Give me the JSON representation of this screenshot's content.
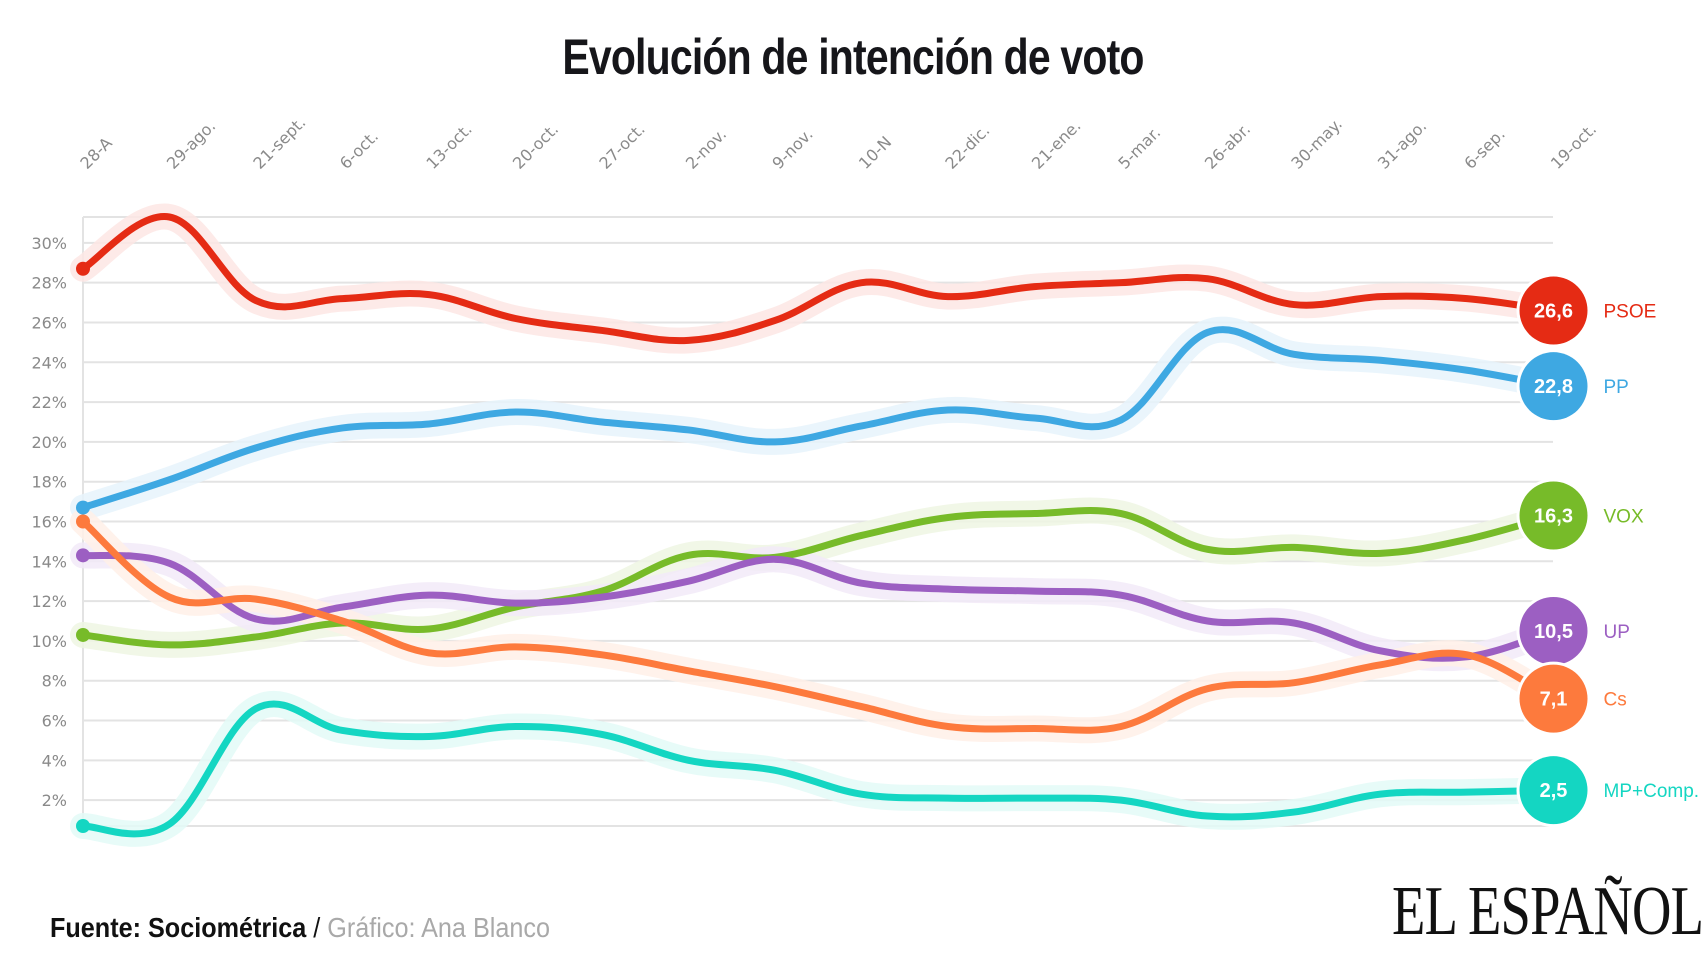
{
  "title": "Evolución de intención de voto",
  "footer": {
    "source": "Fuente: Sociométrica",
    "separator": " / ",
    "credit": "Gráfico: Ana Blanco"
  },
  "logo": "EL ESPAÑOL",
  "chart_data": {
    "type": "line",
    "title": "Evolución de intención de voto",
    "xlabel": "",
    "ylabel": "",
    "ylim": [
      0.7,
      31.3
    ],
    "yticks": [
      2,
      4,
      6,
      8,
      10,
      12,
      14,
      16,
      18,
      20,
      22,
      24,
      26,
      28,
      30
    ],
    "ytick_labels": [
      "2%",
      "4%",
      "6%",
      "8%",
      "10%",
      "12%",
      "14%",
      "16%",
      "18%",
      "20%",
      "22%",
      "24%",
      "26%",
      "28%",
      "30%"
    ],
    "grid": true,
    "legend": "right end-labels",
    "categories": [
      "28-A",
      "29-ago.",
      "21-sept.",
      "6-oct.",
      "13-oct.",
      "20-oct.",
      "27-oct.",
      "2-nov.",
      "9-nov.",
      "10-N",
      "22-dic.",
      "21-ene.",
      "5-mar.",
      "26-abr.",
      "30-may.",
      "31-ago.",
      "6-sep.",
      "19-oct."
    ],
    "series": [
      {
        "name": "PSOE",
        "color": "#e52b14",
        "halo": "#fde6e4",
        "end_label": "26,6",
        "values": [
          28.7,
          31.3,
          27.1,
          27.2,
          27.4,
          26.2,
          25.6,
          25.1,
          26.1,
          28.0,
          27.3,
          27.8,
          28.0,
          28.2,
          26.9,
          27.3,
          27.2,
          26.6
        ]
      },
      {
        "name": "PP",
        "color": "#3ea8e2",
        "halo": "#e6f3fb",
        "end_label": "22,8",
        "values": [
          16.7,
          18.1,
          19.7,
          20.7,
          20.9,
          21.5,
          21.0,
          20.6,
          20.0,
          20.8,
          21.6,
          21.2,
          21.1,
          25.5,
          24.4,
          24.1,
          23.6,
          22.8
        ]
      },
      {
        "name": "VOX",
        "color": "#77bb29",
        "halo": "#eef6e3",
        "end_label": "16,3",
        "values": [
          10.3,
          9.8,
          10.2,
          10.9,
          10.6,
          11.7,
          12.5,
          14.3,
          14.2,
          15.3,
          16.2,
          16.4,
          16.4,
          14.6,
          14.7,
          14.4,
          15.1,
          16.3
        ]
      },
      {
        "name": "UP",
        "color": "#9c5fc2",
        "halo": "#f2eaf8",
        "end_label": "10,5",
        "values": [
          14.3,
          13.9,
          11.1,
          11.7,
          12.3,
          11.9,
          12.2,
          13.0,
          14.1,
          12.9,
          12.6,
          12.5,
          12.3,
          11.0,
          10.9,
          9.5,
          9.2,
          10.5
        ]
      },
      {
        "name": "Cs",
        "color": "#fd7a3d",
        "halo": "#fff0e8",
        "end_label": "7,1",
        "values": [
          16.0,
          12.2,
          12.1,
          11.0,
          9.4,
          9.7,
          9.3,
          8.5,
          7.7,
          6.7,
          5.7,
          5.6,
          5.7,
          7.6,
          7.9,
          8.8,
          9.3,
          7.1
        ]
      },
      {
        "name": "MP+Comp.",
        "color": "#14d6c2",
        "halo": "#e3faf7",
        "end_label": "2,5",
        "values": [
          0.7,
          0.8,
          6.6,
          5.5,
          5.2,
          5.7,
          5.3,
          4.0,
          3.5,
          2.3,
          2.1,
          2.1,
          2.0,
          1.2,
          1.4,
          2.3,
          2.4,
          2.5
        ]
      }
    ],
    "end_badge_positions_pct": {
      "PSOE": 26.6,
      "PP": 22.8,
      "VOX": 16.3,
      "UP": 10.5,
      "Cs": 7.1,
      "MP+Comp.": 2.5
    }
  }
}
